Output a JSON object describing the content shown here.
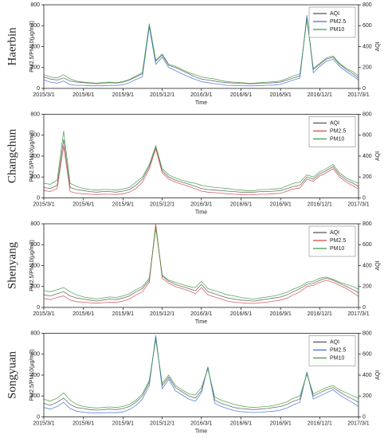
{
  "chart_data": [
    {
      "type": "line",
      "title": "Haerbin",
      "xlabel": "Time",
      "ylabel": "PM2.5/PM10(μg/m3)",
      "y2label": "AQI",
      "legend": "upper right",
      "x": [
        "2015/3/1",
        "2015/3/16",
        "2015/4/1",
        "2015/4/16",
        "2015/5/1",
        "2015/5/16",
        "2015/6/1",
        "2015/6/16",
        "2015/7/1",
        "2015/7/16",
        "2015/8/1",
        "2015/8/16",
        "2015/9/1",
        "2015/9/16",
        "2015/10/1",
        "2015/10/16",
        "2015/11/1",
        "2015/11/16",
        "2015/12/1",
        "2015/12/16",
        "2016/1/1",
        "2016/1/16",
        "2016/2/1",
        "2016/2/16",
        "2016/3/1",
        "2016/3/16",
        "2016/4/1",
        "2016/4/16",
        "2016/5/1",
        "2016/5/16",
        "2016/6/1",
        "2016/6/16",
        "2016/7/1",
        "2016/7/16",
        "2016/8/1",
        "2016/8/16",
        "2016/9/1",
        "2016/9/16",
        "2016/10/1",
        "2016/10/16",
        "2016/11/1",
        "2016/11/16",
        "2016/12/1",
        "2016/12/16",
        "2017/1/1",
        "2017/1/16",
        "2017/2/1",
        "2017/2/16",
        "2017/3/1"
      ],
      "xlim": [
        "2015/3/1",
        "2017/3/1"
      ],
      "xticks": [
        "2015/3/1",
        "2015/6/1",
        "2015/9/1",
        "2015/12/1",
        "2016/3/1",
        "2016/6/1",
        "2016/9/1",
        "2016/12/1",
        "2017/3/1"
      ],
      "ylim": [
        0,
        800
      ],
      "yticks": [
        0,
        200,
        400,
        600,
        800
      ],
      "y2lim": [
        0,
        800
      ],
      "y2ticks": [
        0,
        200,
        400,
        600,
        800
      ],
      "series": [
        {
          "name": "AQI",
          "color": "#555555",
          "axis": "y2",
          "values": [
            110,
            90,
            80,
            100,
            70,
            60,
            55,
            50,
            45,
            50,
            55,
            50,
            60,
            80,
            110,
            140,
            600,
            260,
            320,
            220,
            200,
            170,
            140,
            110,
            90,
            80,
            70,
            60,
            55,
            50,
            50,
            45,
            45,
            50,
            50,
            55,
            60,
            80,
            100,
            120,
            680,
            180,
            230,
            280,
            300,
            230,
            180,
            140,
            100
          ]
        },
        {
          "name": "PM2.5",
          "color": "#3f6fd6",
          "values": [
            80,
            60,
            50,
            70,
            35,
            30,
            30,
            25,
            25,
            25,
            30,
            28,
            35,
            55,
            85,
            110,
            590,
            230,
            300,
            200,
            170,
            140,
            110,
            85,
            65,
            55,
            45,
            38,
            30,
            28,
            26,
            24,
            24,
            28,
            30,
            32,
            38,
            60,
            80,
            100,
            700,
            150,
            210,
            260,
            280,
            210,
            160,
            120,
            80
          ]
        },
        {
          "name": "PM10",
          "color": "#3c9a3c",
          "values": [
            130,
            110,
            100,
            130,
            90,
            70,
            60,
            55,
            50,
            55,
            60,
            55,
            65,
            85,
            120,
            150,
            620,
            270,
            330,
            230,
            210,
            180,
            150,
            130,
            110,
            100,
            90,
            75,
            65,
            60,
            55,
            50,
            50,
            55,
            60,
            65,
            70,
            95,
            120,
            140,
            660,
            190,
            240,
            290,
            310,
            240,
            190,
            160,
            120
          ]
        }
      ]
    },
    {
      "type": "line",
      "title": "Changchun",
      "xlabel": "Time",
      "ylabel": "PM2.5/PM10(μg/m3)",
      "y2label": "AQI",
      "legend": "upper right",
      "x": [
        "2015/3/1",
        "2015/3/16",
        "2015/4/1",
        "2015/4/16",
        "2015/5/1",
        "2015/5/16",
        "2015/6/1",
        "2015/6/16",
        "2015/7/1",
        "2015/7/16",
        "2015/8/1",
        "2015/8/16",
        "2015/9/1",
        "2015/9/16",
        "2015/10/1",
        "2015/10/16",
        "2015/11/1",
        "2015/11/16",
        "2015/12/1",
        "2015/12/16",
        "2016/1/1",
        "2016/1/16",
        "2016/2/1",
        "2016/2/16",
        "2016/3/1",
        "2016/3/16",
        "2016/4/1",
        "2016/4/16",
        "2016/5/1",
        "2016/5/16",
        "2016/6/1",
        "2016/6/16",
        "2016/7/1",
        "2016/7/16",
        "2016/8/1",
        "2016/8/16",
        "2016/9/1",
        "2016/9/16",
        "2016/10/1",
        "2016/10/16",
        "2016/11/1",
        "2016/11/16",
        "2016/12/1",
        "2016/12/16",
        "2017/1/1",
        "2017/1/16",
        "2017/2/1",
        "2017/2/16",
        "2017/3/1"
      ],
      "xlim": [
        "2015/3/1",
        "2017/3/1"
      ],
      "xticks": [
        "2015/3/1",
        "2015/6/1",
        "2015/9/1",
        "2015/12/1",
        "2016/3/1",
        "2016/6/1",
        "2016/9/1",
        "2016/12/1",
        "2017/3/1"
      ],
      "ylim": [
        0,
        800
      ],
      "yticks": [
        0,
        200,
        400,
        600,
        800
      ],
      "y2lim": [
        0,
        800
      ],
      "y2ticks": [
        0,
        200,
        400,
        600,
        800
      ],
      "series": [
        {
          "name": "AQI",
          "color": "#555555",
          "axis": "y2",
          "values": [
            100,
            90,
            120,
            560,
            100,
            80,
            70,
            60,
            55,
            60,
            60,
            55,
            65,
            80,
            120,
            180,
            300,
            480,
            260,
            200,
            170,
            150,
            130,
            110,
            90,
            80,
            75,
            70,
            65,
            60,
            55,
            55,
            55,
            60,
            60,
            65,
            70,
            90,
            110,
            120,
            200,
            180,
            230,
            260,
            300,
            220,
            170,
            140,
            110
          ]
        },
        {
          "name": "PM2.5",
          "color": "#d04848",
          "values": [
            70,
            60,
            90,
            500,
            60,
            45,
            40,
            35,
            32,
            35,
            35,
            32,
            40,
            55,
            90,
            150,
            280,
            470,
            240,
            180,
            150,
            130,
            110,
            85,
            65,
            55,
            50,
            45,
            40,
            35,
            32,
            30,
            30,
            35,
            35,
            40,
            45,
            65,
            85,
            95,
            180,
            160,
            210,
            240,
            280,
            200,
            150,
            115,
            85
          ]
        },
        {
          "name": "PM10",
          "color": "#3c9a3c",
          "values": [
            140,
            130,
            170,
            640,
            140,
            110,
            90,
            80,
            75,
            80,
            80,
            75,
            85,
            100,
            150,
            200,
            320,
            500,
            280,
            220,
            190,
            170,
            150,
            140,
            120,
            110,
            100,
            95,
            90,
            80,
            75,
            70,
            70,
            80,
            80,
            85,
            90,
            115,
            140,
            150,
            220,
            200,
            250,
            280,
            320,
            240,
            190,
            160,
            140
          ]
        }
      ]
    },
    {
      "type": "line",
      "title": "Shenyang",
      "xlabel": "Time",
      "ylabel": "PM2.5/PM10(μg/m3)",
      "y2label": "AQI",
      "legend": "upper right",
      "x": [
        "2015/3/1",
        "2015/3/16",
        "2015/4/1",
        "2015/4/16",
        "2015/5/1",
        "2015/5/16",
        "2015/6/1",
        "2015/6/16",
        "2015/7/1",
        "2015/7/16",
        "2015/8/1",
        "2015/8/16",
        "2015/9/1",
        "2015/9/16",
        "2015/10/1",
        "2015/10/16",
        "2015/11/1",
        "2015/11/16",
        "2015/12/1",
        "2015/12/16",
        "2016/1/1",
        "2016/1/16",
        "2016/2/1",
        "2016/2/16",
        "2016/3/1",
        "2016/3/16",
        "2016/4/1",
        "2016/4/16",
        "2016/5/1",
        "2016/5/16",
        "2016/6/1",
        "2016/6/16",
        "2016/7/1",
        "2016/7/16",
        "2016/8/1",
        "2016/8/16",
        "2016/9/1",
        "2016/9/16",
        "2016/10/1",
        "2016/10/16",
        "2016/11/1",
        "2016/11/16",
        "2016/12/1",
        "2016/12/16",
        "2017/1/1",
        "2017/1/16",
        "2017/2/1",
        "2017/2/16",
        "2017/3/1"
      ],
      "xlim": [
        "2015/3/1",
        "2017/3/1"
      ],
      "xticks": [
        "2015/3/1",
        "2015/6/1",
        "2015/9/1",
        "2015/12/1",
        "2016/3/1",
        "2016/6/1",
        "2016/9/1",
        "2016/12/1",
        "2017/3/1"
      ],
      "ylim": [
        0,
        800
      ],
      "yticks": [
        0,
        200,
        400,
        600,
        800
      ],
      "y2lim": [
        0,
        800
      ],
      "y2ticks": [
        0,
        200,
        400,
        600,
        800
      ],
      "series": [
        {
          "name": "AQI",
          "color": "#555555",
          "axis": "y2",
          "values": [
            120,
            110,
            130,
            150,
            110,
            90,
            80,
            70,
            60,
            70,
            80,
            75,
            90,
            110,
            150,
            180,
            260,
            780,
            300,
            250,
            220,
            200,
            180,
            160,
            220,
            150,
            130,
            110,
            90,
            80,
            70,
            65,
            60,
            70,
            80,
            90,
            100,
            120,
            150,
            180,
            220,
            230,
            260,
            280,
            260,
            230,
            200,
            170,
            140
          ]
        },
        {
          "name": "PM2.5",
          "color": "#d04848",
          "values": [
            85,
            75,
            95,
            110,
            70,
            55,
            50,
            45,
            40,
            45,
            50,
            48,
            60,
            80,
            120,
            150,
            240,
            800,
            280,
            230,
            200,
            180,
            160,
            130,
            190,
            120,
            100,
            80,
            60,
            50,
            45,
            40,
            38,
            45,
            50,
            60,
            70,
            90,
            120,
            150,
            200,
            210,
            240,
            260,
            240,
            210,
            180,
            140,
            105
          ]
        },
        {
          "name": "PM10",
          "color": "#3c9a3c",
          "values": [
            160,
            150,
            170,
            190,
            150,
            120,
            100,
            90,
            80,
            90,
            100,
            95,
            110,
            130,
            170,
            200,
            280,
            760,
            310,
            260,
            240,
            220,
            200,
            190,
            250,
            180,
            160,
            140,
            120,
            110,
            95,
            85,
            80,
            90,
            100,
            110,
            125,
            145,
            175,
            200,
            240,
            250,
            280,
            290,
            270,
            240,
            220,
            200,
            175
          ]
        }
      ]
    },
    {
      "type": "line",
      "title": "Songyuan",
      "xlabel": "Time",
      "ylabel": "PM2.5/PM10(μg/m3)",
      "y2label": "AQI",
      "legend": "upper right",
      "x": [
        "2015/3/1",
        "2015/3/16",
        "2015/4/1",
        "2015/4/16",
        "2015/5/1",
        "2015/5/16",
        "2015/6/1",
        "2015/6/16",
        "2015/7/1",
        "2015/7/16",
        "2015/8/1",
        "2015/8/16",
        "2015/9/1",
        "2015/9/16",
        "2015/10/1",
        "2015/10/16",
        "2015/11/1",
        "2015/11/16",
        "2015/12/1",
        "2015/12/16",
        "2016/1/1",
        "2016/1/16",
        "2016/2/1",
        "2016/2/16",
        "2016/3/1",
        "2016/3/16",
        "2016/4/1",
        "2016/4/16",
        "2016/5/1",
        "2016/5/16",
        "2016/6/1",
        "2016/6/16",
        "2016/7/1",
        "2016/7/16",
        "2016/8/1",
        "2016/8/16",
        "2016/9/1",
        "2016/9/16",
        "2016/10/1",
        "2016/10/16",
        "2016/11/1",
        "2016/11/16",
        "2016/12/1",
        "2016/12/16",
        "2017/1/1",
        "2017/1/16",
        "2017/2/1",
        "2017/2/16",
        "2017/3/1"
      ],
      "xlim": [
        "2015/3/1",
        "2017/3/1"
      ],
      "xticks": [
        "2015/3/1",
        "2015/6/1",
        "2015/9/1",
        "2015/12/1",
        "2016/3/1",
        "2016/6/1",
        "2016/9/1",
        "2016/12/1",
        "2017/3/1"
      ],
      "ylim": [
        0,
        800
      ],
      "yticks": [
        0,
        200,
        400,
        600,
        800
      ],
      "y2lim": [
        0,
        800
      ],
      "y2ticks": [
        0,
        200,
        400,
        600,
        800
      ],
      "series": [
        {
          "name": "AQI",
          "color": "#555555",
          "axis": "y2",
          "values": [
            130,
            110,
            140,
            180,
            120,
            90,
            80,
            70,
            65,
            70,
            75,
            70,
            80,
            100,
            140,
            200,
            330,
            760,
            300,
            380,
            280,
            240,
            200,
            180,
            250,
            470,
            160,
            130,
            110,
            90,
            80,
            75,
            70,
            75,
            80,
            90,
            100,
            120,
            150,
            170,
            420,
            200,
            230,
            260,
            280,
            240,
            200,
            170,
            140
          ]
        },
        {
          "name": "PM2.5",
          "color": "#3f6fd6",
          "values": [
            90,
            75,
            100,
            140,
            80,
            55,
            45,
            40,
            38,
            40,
            42,
            40,
            48,
            70,
            110,
            170,
            300,
            780,
            270,
            360,
            250,
            210,
            170,
            150,
            230,
            480,
            130,
            100,
            80,
            60,
            50,
            45,
            42,
            45,
            50,
            55,
            65,
            85,
            115,
            140,
            430,
            170,
            200,
            230,
            260,
            210,
            170,
            135,
            100
          ]
        },
        {
          "name": "PM10",
          "color": "#3c9a3c",
          "values": [
            170,
            150,
            180,
            230,
            160,
            120,
            100,
            90,
            85,
            90,
            95,
            90,
            100,
            120,
            160,
            220,
            350,
            740,
            320,
            400,
            300,
            260,
            220,
            210,
            280,
            460,
            190,
            160,
            140,
            120,
            105,
            95,
            90,
            95,
            100,
            110,
            125,
            145,
            180,
            200,
            410,
            220,
            250,
            280,
            300,
            260,
            230,
            200,
            180
          ]
        }
      ]
    }
  ]
}
